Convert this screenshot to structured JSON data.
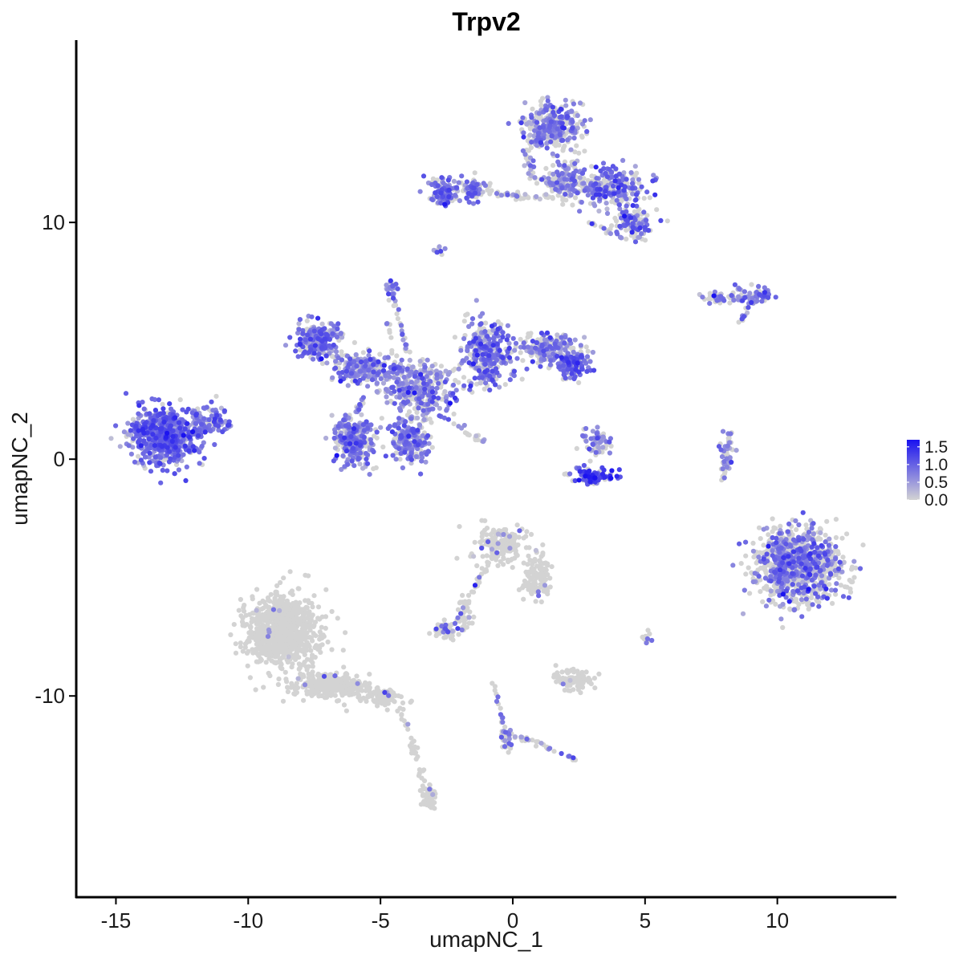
{
  "chart_data": {
    "type": "scatter",
    "title": "Trpv2",
    "xlabel": "umapNC_1",
    "ylabel": "umapNC_2",
    "xlim": [
      -16.5,
      14.5
    ],
    "ylim": [
      -18.5,
      17.7
    ],
    "x_ticks": [
      -15,
      -10,
      -5,
      0,
      5,
      10
    ],
    "x_tick_labels": [
      "-15",
      "-10",
      "-5",
      "0",
      "5",
      "10"
    ],
    "y_ticks": [
      -10,
      0,
      10
    ],
    "y_tick_labels": [
      "-10",
      "0",
      "10"
    ],
    "grid": false,
    "legend": {
      "position": "right",
      "type": "colorbar",
      "min": 0.0,
      "max": 1.7,
      "ticks": [
        0.0,
        0.5,
        1.0,
        1.5
      ],
      "tick_labels": [
        "0.0",
        "0.5",
        "1.0",
        "1.5"
      ],
      "color_low": "#d3d3d3",
      "color_high": "#1a12f0"
    },
    "colors": {
      "low": "#d3d3d3",
      "high": "#1a12f0"
    },
    "clusters": [
      {
        "cx": -13.2,
        "cy": 1.0,
        "sx": 1.1,
        "sy": 1.0,
        "n": 650,
        "expr_frac": 0.9,
        "mean": 0.9
      },
      {
        "cx": -11.3,
        "cy": 1.8,
        "sx": 0.6,
        "sy": 0.6,
        "n": 60,
        "expr_frac": 0.85,
        "mean": 0.8
      },
      {
        "cx": -7.3,
        "cy": 5.0,
        "sx": 0.7,
        "sy": 0.7,
        "n": 220,
        "expr_frac": 0.75,
        "mean": 0.8
      },
      {
        "cx": -5.6,
        "cy": 3.8,
        "sx": 1.0,
        "sy": 0.6,
        "n": 220,
        "expr_frac": 0.65,
        "mean": 0.7
      },
      {
        "cx": -3.5,
        "cy": 3.0,
        "sx": 1.2,
        "sy": 1.0,
        "n": 300,
        "expr_frac": 0.6,
        "mean": 0.7
      },
      {
        "cx": -6.0,
        "cy": 0.7,
        "sx": 0.7,
        "sy": 1.0,
        "n": 260,
        "expr_frac": 0.7,
        "mean": 0.75
      },
      {
        "cx": -3.9,
        "cy": 0.9,
        "sx": 0.7,
        "sy": 0.9,
        "n": 200,
        "expr_frac": 0.7,
        "mean": 0.75
      },
      {
        "cx": -1.0,
        "cy": 4.4,
        "sx": 0.8,
        "sy": 1.3,
        "n": 360,
        "expr_frac": 0.6,
        "mean": 0.8
      },
      {
        "cx": 1.3,
        "cy": 4.6,
        "sx": 1.0,
        "sy": 0.6,
        "n": 200,
        "expr_frac": 0.55,
        "mean": 0.7
      },
      {
        "cx": 2.3,
        "cy": 4.0,
        "sx": 0.5,
        "sy": 0.6,
        "n": 120,
        "expr_frac": 0.75,
        "mean": 0.9
      },
      {
        "cx": -4.6,
        "cy": 7.2,
        "sx": 0.2,
        "sy": 0.3,
        "n": 20,
        "expr_frac": 0.8,
        "mean": 0.8
      },
      {
        "cx": -2.6,
        "cy": 11.3,
        "sx": 0.5,
        "sy": 0.5,
        "n": 110,
        "expr_frac": 0.7,
        "mean": 0.8
      },
      {
        "cx": -1.5,
        "cy": 11.4,
        "sx": 0.4,
        "sy": 0.5,
        "n": 60,
        "expr_frac": 0.65,
        "mean": 0.8
      },
      {
        "cx": 1.5,
        "cy": 14.0,
        "sx": 1.1,
        "sy": 0.9,
        "n": 330,
        "expr_frac": 0.55,
        "mean": 0.75
      },
      {
        "cx": 2.0,
        "cy": 11.8,
        "sx": 0.8,
        "sy": 0.8,
        "n": 170,
        "expr_frac": 0.5,
        "mean": 0.7
      },
      {
        "cx": 3.7,
        "cy": 11.5,
        "sx": 1.2,
        "sy": 0.7,
        "n": 240,
        "expr_frac": 0.55,
        "mean": 0.8
      },
      {
        "cx": 4.6,
        "cy": 10.0,
        "sx": 0.6,
        "sy": 0.6,
        "n": 120,
        "expr_frac": 0.6,
        "mean": 0.85
      },
      {
        "cx": -2.8,
        "cy": 8.8,
        "sx": 0.2,
        "sy": 0.2,
        "n": 8,
        "expr_frac": 0.8,
        "mean": 0.7
      },
      {
        "cx": 7.8,
        "cy": 6.9,
        "sx": 0.6,
        "sy": 0.2,
        "n": 30,
        "expr_frac": 0.5,
        "mean": 0.7
      },
      {
        "cx": 9.4,
        "cy": 6.9,
        "sx": 0.4,
        "sy": 0.3,
        "n": 45,
        "expr_frac": 0.7,
        "mean": 0.8
      },
      {
        "cx": 3.2,
        "cy": 0.7,
        "sx": 0.5,
        "sy": 0.6,
        "n": 60,
        "expr_frac": 0.6,
        "mean": 0.7
      },
      {
        "cx": 3.1,
        "cy": -0.7,
        "sx": 0.8,
        "sy": 0.3,
        "n": 100,
        "expr_frac": 0.8,
        "mean": 1.2
      },
      {
        "cx": 8.1,
        "cy": 0.3,
        "sx": 0.3,
        "sy": 0.6,
        "n": 25,
        "expr_frac": 0.6,
        "mean": 0.7
      },
      {
        "cx": 10.8,
        "cy": -4.5,
        "sx": 1.4,
        "sy": 1.4,
        "n": 950,
        "expr_frac": 0.48,
        "mean": 0.75
      },
      {
        "cx": -0.5,
        "cy": -3.6,
        "sx": 0.8,
        "sy": 0.7,
        "n": 170,
        "expr_frac": 0.04,
        "mean": 0.6
      },
      {
        "cx": 0.9,
        "cy": -5.0,
        "sx": 0.5,
        "sy": 0.9,
        "n": 90,
        "expr_frac": 0.04,
        "mean": 0.6
      },
      {
        "cx": -1.8,
        "cy": -6.5,
        "sx": 0.3,
        "sy": 0.7,
        "n": 30,
        "expr_frac": 0.03,
        "mean": 0.6
      },
      {
        "cx": -2.5,
        "cy": -7.2,
        "sx": 0.5,
        "sy": 0.3,
        "n": 60,
        "expr_frac": 0.3,
        "mean": 0.75
      },
      {
        "cx": 2.3,
        "cy": -9.3,
        "sx": 0.6,
        "sy": 0.4,
        "n": 90,
        "expr_frac": 0.02,
        "mean": 0.6
      },
      {
        "cx": -8.7,
        "cy": -7.3,
        "sx": 1.2,
        "sy": 1.4,
        "n": 900,
        "expr_frac": 0.015,
        "mean": 0.7
      },
      {
        "cx": -7.0,
        "cy": -9.6,
        "sx": 1.2,
        "sy": 0.5,
        "n": 250,
        "expr_frac": 0.01,
        "mean": 0.6
      },
      {
        "cx": -5.0,
        "cy": -10.0,
        "sx": 0.7,
        "sy": 0.35,
        "n": 80,
        "expr_frac": 0.06,
        "mean": 0.6
      },
      {
        "cx": -3.2,
        "cy": -14.3,
        "sx": 0.25,
        "sy": 0.5,
        "n": 55,
        "expr_frac": 0.04,
        "mean": 0.6
      },
      {
        "cx": -0.2,
        "cy": -11.9,
        "sx": 0.3,
        "sy": 0.4,
        "n": 25,
        "expr_frac": 0.3,
        "mean": 0.7
      },
      {
        "cx": 5.0,
        "cy": -7.4,
        "sx": 0.2,
        "sy": 0.3,
        "n": 10,
        "expr_frac": 0.5,
        "mean": 0.7
      }
    ],
    "bridges": [
      {
        "from": [
          -1.9,
          11.3
        ],
        "to": [
          1.8,
          11.0
        ],
        "n": 50,
        "w": 0.15,
        "expr_frac": 0.3,
        "mean": 0.7
      },
      {
        "from": [
          -4.6,
          7.0
        ],
        "to": [
          -3.6,
          3.2
        ],
        "n": 30,
        "w": 0.12,
        "expr_frac": 0.5,
        "mean": 0.7
      },
      {
        "from": [
          -4.8,
          6.0
        ],
        "to": [
          -4.1,
          2.0
        ],
        "n": 20,
        "w": 0.1,
        "expr_frac": 0.5,
        "mean": 0.7
      },
      {
        "from": [
          -3.7,
          2.5
        ],
        "to": [
          -1.1,
          0.7
        ],
        "n": 35,
        "w": 0.12,
        "expr_frac": 0.5,
        "mean": 0.7
      },
      {
        "from": [
          -6.6,
          4.4
        ],
        "to": [
          -4.9,
          3.5
        ],
        "n": 40,
        "w": 0.25,
        "expr_frac": 0.6,
        "mean": 0.7
      },
      {
        "from": [
          -11.9,
          1.2
        ],
        "to": [
          -10.6,
          1.4
        ],
        "n": 20,
        "w": 0.15,
        "expr_frac": 0.8,
        "mean": 0.8
      },
      {
        "from": [
          7.4,
          6.7
        ],
        "to": [
          8.8,
          6.8
        ],
        "n": 25,
        "w": 0.12,
        "expr_frac": 0.6,
        "mean": 0.7
      },
      {
        "from": [
          8.4,
          7.4
        ],
        "to": [
          9.1,
          6.6
        ],
        "n": 15,
        "w": 0.1,
        "expr_frac": 0.7,
        "mean": 0.8
      },
      {
        "from": [
          8.9,
          6.5
        ],
        "to": [
          8.6,
          5.8
        ],
        "n": 12,
        "w": 0.1,
        "expr_frac": 0.5,
        "mean": 0.7
      },
      {
        "from": [
          7.9,
          -1.0
        ],
        "to": [
          8.3,
          1.3
        ],
        "n": 25,
        "w": 0.12,
        "expr_frac": 0.5,
        "mean": 0.7
      },
      {
        "from": [
          -2.1,
          -6.9
        ],
        "to": [
          -0.6,
          -3.6
        ],
        "n": 35,
        "w": 0.12,
        "expr_frac": 0.05,
        "mean": 0.6
      },
      {
        "from": [
          1.0,
          -3.8
        ],
        "to": [
          1.3,
          -5.7
        ],
        "n": 25,
        "w": 0.15,
        "expr_frac": 0.05,
        "mean": 0.6
      },
      {
        "from": [
          -0.8,
          -9.3
        ],
        "to": [
          -0.2,
          -11.9
        ],
        "n": 25,
        "w": 0.1,
        "expr_frac": 0.45,
        "mean": 0.8
      },
      {
        "from": [
          -0.2,
          -11.6
        ],
        "to": [
          1.5,
          -12.2
        ],
        "n": 20,
        "w": 0.1,
        "expr_frac": 0.2,
        "mean": 0.7
      },
      {
        "from": [
          1.3,
          -12.2
        ],
        "to": [
          2.4,
          -12.7
        ],
        "n": 15,
        "w": 0.1,
        "expr_frac": 0.4,
        "mean": 0.8
      },
      {
        "from": [
          -4.4,
          -10.2
        ],
        "to": [
          -3.2,
          -14.0
        ],
        "n": 35,
        "w": 0.15,
        "expr_frac": 0.03,
        "mean": 0.6
      },
      {
        "from": [
          -6.9,
          -9.1
        ],
        "to": [
          -5.3,
          -10.0
        ],
        "n": 30,
        "w": 0.3,
        "expr_frac": 0.05,
        "mean": 0.6
      },
      {
        "from": [
          -5.6,
          2.6
        ],
        "to": [
          -6.6,
          1.2
        ],
        "n": 25,
        "w": 0.15,
        "expr_frac": 0.6,
        "mean": 0.7
      },
      {
        "from": [
          0.5,
          13.0
        ],
        "to": [
          0.8,
          11.8
        ],
        "n": 20,
        "w": 0.15,
        "expr_frac": 0.5,
        "mean": 0.7
      },
      {
        "from": [
          2.8,
          10.0
        ],
        "to": [
          4.2,
          9.4
        ],
        "n": 15,
        "w": 0.1,
        "expr_frac": 0.4,
        "mean": 0.7
      }
    ],
    "seed": 20240517
  }
}
